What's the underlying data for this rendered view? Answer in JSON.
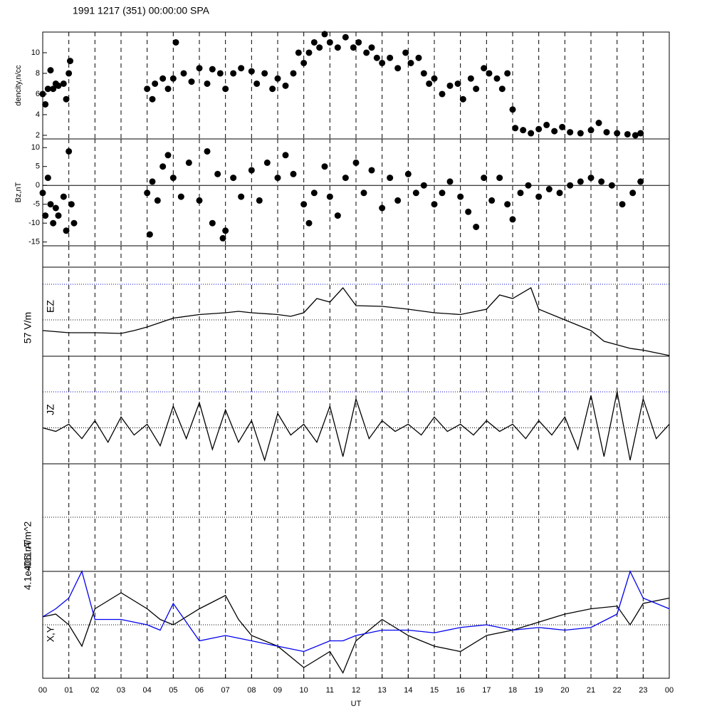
{
  "chart_data": [
    {
      "type": "scatter",
      "title": "1991 1217 (351) 00:00:00 SPA",
      "ylabel": "dencity,n/cc",
      "color": "#000000",
      "x": [
        0.0,
        0.1,
        0.2,
        0.3,
        0.4,
        0.5,
        0.6,
        0.8,
        0.9,
        1.0,
        1.05,
        4.0,
        4.2,
        4.3,
        4.6,
        4.8,
        5.0,
        5.1,
        5.4,
        5.7,
        6.0,
        6.3,
        6.5,
        6.8,
        7.0,
        7.3,
        7.6,
        8.0,
        8.2,
        8.5,
        8.8,
        9.0,
        9.3,
        9.6,
        9.8,
        10.0,
        10.2,
        10.4,
        10.6,
        10.8,
        11.0,
        11.3,
        11.6,
        11.9,
        12.1,
        12.4,
        12.6,
        12.8,
        13.0,
        13.3,
        13.6,
        13.9,
        14.1,
        14.4,
        14.6,
        14.8,
        15.0,
        15.3,
        15.6,
        15.9,
        16.1,
        16.4,
        16.6,
        16.9,
        17.1,
        17.4,
        17.6,
        17.8,
        18.0,
        18.1,
        18.4,
        18.7,
        19.0,
        19.3,
        19.6,
        19.9,
        20.2,
        20.6,
        21.0,
        21.3,
        21.6,
        22.0,
        22.4,
        22.7,
        22.9
      ],
      "values": [
        6,
        5,
        6.5,
        8.3,
        6.5,
        7,
        6.8,
        7,
        5.5,
        8,
        9.2,
        6.5,
        5.5,
        7,
        7.5,
        6.5,
        7.5,
        11,
        8,
        7.2,
        8.5,
        7,
        8.4,
        8,
        6.5,
        8,
        8.5,
        8.2,
        7,
        8,
        6.5,
        7.5,
        6.8,
        8,
        10,
        9,
        10,
        11,
        10.5,
        11.8,
        11,
        10.5,
        11.5,
        10.5,
        11,
        10,
        10.5,
        9.5,
        9,
        9.5,
        8.5,
        10,
        9,
        9.5,
        8,
        7,
        7.5,
        6,
        6.8,
        7,
        5.5,
        7.5,
        6.5,
        8.5,
        8,
        7.5,
        6.5,
        8,
        4.5,
        2.7,
        2.5,
        2.2,
        2.6,
        3,
        2.4,
        2.8,
        2.3,
        2.2,
        2.5,
        3.2,
        2.3,
        2.2,
        2.1,
        2,
        2.2
      ],
      "ylim": [
        1.65,
        12
      ],
      "yticks": [
        2,
        4,
        6,
        8,
        10
      ],
      "xlim": [
        0,
        24
      ]
    },
    {
      "type": "scatter",
      "ylabel": "Bz,nT",
      "color": "#000000",
      "zero_line": true,
      "x": [
        0,
        0.1,
        0.2,
        0.3,
        0.4,
        0.5,
        0.6,
        0.8,
        0.9,
        1.0,
        1.1,
        1.2,
        4.0,
        4.1,
        4.2,
        4.4,
        4.6,
        4.8,
        5.0,
        5.3,
        5.6,
        6.0,
        6.3,
        6.5,
        6.7,
        6.9,
        7.0,
        7.3,
        7.6,
        8.0,
        8.3,
        8.6,
        9.0,
        9.3,
        9.6,
        10.0,
        10.2,
        10.4,
        10.8,
        11.0,
        11.3,
        11.6,
        12.0,
        12.3,
        12.6,
        13.0,
        13.3,
        13.6,
        14.0,
        14.3,
        14.6,
        15.0,
        15.3,
        15.6,
        16.0,
        16.3,
        16.6,
        16.9,
        17.2,
        17.5,
        17.8,
        18.0,
        18.3,
        18.6,
        19.0,
        19.4,
        19.8,
        20.2,
        20.6,
        21.0,
        21.4,
        21.8,
        22.2,
        22.6,
        22.9
      ],
      "values": [
        -2,
        -8,
        2,
        -5,
        -10,
        -6,
        -8,
        -3,
        -12,
        9,
        -5,
        -10,
        -2,
        -13,
        1,
        -4,
        5,
        8,
        2,
        -3,
        6,
        -4,
        9,
        -10,
        3,
        -14,
        -12,
        2,
        -3,
        4,
        -4,
        6,
        2,
        8,
        3,
        -5,
        -10,
        -2,
        5,
        -3,
        -8,
        2,
        6,
        -2,
        4,
        -6,
        2,
        -4,
        3,
        -2,
        0,
        -5,
        -2,
        1,
        -3,
        -7,
        -11,
        2,
        -4,
        2,
        -5,
        -9,
        -2,
        0,
        -3,
        -1,
        -2,
        0,
        1,
        2,
        1,
        0,
        -5,
        -2,
        1
      ],
      "ylim": [
        -16,
        12.3
      ],
      "yticks": [
        -15,
        -10,
        -5,
        0,
        5,
        10
      ],
      "xlim": [
        0,
        24
      ]
    },
    {
      "type": "line",
      "ylabel": "EZ",
      "scale_label": "57 V/m",
      "color": "#000000",
      "x": [
        0,
        1,
        2,
        3,
        3.5,
        4,
        5,
        6,
        7,
        7.5,
        8,
        9,
        9.5,
        10,
        10.5,
        11,
        11.5,
        12,
        13,
        14,
        15,
        16,
        17,
        17.5,
        18,
        18.7,
        19,
        20,
        21,
        21.5,
        22,
        22.5,
        23,
        24
      ],
      "values": [
        -0.3,
        -0.36,
        -0.36,
        -0.38,
        -0.3,
        -0.2,
        0.05,
        0.15,
        0.2,
        0.24,
        0.2,
        0.15,
        0.1,
        0.2,
        0.6,
        0.5,
        0.9,
        0.4,
        0.38,
        0.3,
        0.2,
        0.15,
        0.3,
        0.7,
        0.6,
        0.9,
        0.3,
        0.0,
        -0.3,
        -0.6,
        -0.7,
        -0.8,
        -0.85,
        -1.0
      ],
      "ylim": [
        -1,
        1
      ],
      "xlim": [
        0,
        24
      ]
    },
    {
      "type": "line",
      "ylabel": "JZ",
      "scale_label": "4.1e-011 A/m^2",
      "color": "#000000",
      "x": [
        0,
        0.5,
        1,
        1.5,
        2,
        2.5,
        3,
        3.5,
        4,
        4.5,
        5,
        5.5,
        6,
        6.5,
        7,
        7.5,
        8,
        8.5,
        9,
        9.5,
        10,
        10.5,
        11,
        11.5,
        12,
        12.5,
        13,
        13.5,
        14,
        14.5,
        15,
        15.5,
        16,
        16.5,
        17,
        17.5,
        18,
        18.5,
        19,
        19.5,
        20,
        20.5,
        21,
        21.5,
        22,
        22.5,
        23,
        23.5,
        24
      ],
      "values": [
        0.0,
        -0.1,
        0.1,
        -0.3,
        0.2,
        -0.4,
        0.3,
        -0.2,
        0.1,
        -0.5,
        0.6,
        -0.3,
        0.7,
        -0.6,
        0.5,
        -0.4,
        0.2,
        -0.9,
        0.4,
        -0.2,
        0.1,
        -0.4,
        0.6,
        -0.8,
        0.8,
        -0.3,
        0.2,
        -0.1,
        0.1,
        -0.2,
        0.3,
        -0.1,
        0.1,
        -0.2,
        0.2,
        -0.1,
        0.1,
        -0.3,
        0.2,
        -0.2,
        0.3,
        -0.6,
        0.9,
        -0.8,
        1.0,
        -0.9,
        0.8,
        -0.3,
        0.1
      ],
      "ylim": [
        -1,
        1
      ],
      "xlim": [
        0,
        24
      ]
    },
    {
      "type": "line",
      "ylabel": "X,Y",
      "scale_label": "406 nT",
      "xlabel": "UT",
      "x": [
        0,
        0.5,
        1,
        1.5,
        2,
        3,
        4,
        4.5,
        5,
        6,
        7,
        7.5,
        8,
        9,
        10,
        11,
        11.5,
        12,
        13,
        14,
        15,
        16,
        17,
        18,
        19,
        20,
        21,
        22,
        22.5,
        23,
        24
      ],
      "series": [
        {
          "color": "#000000",
          "values": [
            0.15,
            0.2,
            0,
            -0.4,
            0.3,
            0.6,
            0.3,
            0.1,
            0.0,
            0.3,
            0.55,
            0.1,
            -0.2,
            -0.4,
            -0.8,
            -0.5,
            -0.9,
            -0.3,
            0.1,
            -0.2,
            -0.4,
            -0.5,
            -0.2,
            -0.1,
            0.05,
            0.2,
            0.3,
            0.35,
            0,
            0.4,
            0.5
          ]
        },
        {
          "color": "#0000ee",
          "values": [
            0.15,
            0.3,
            0.5,
            1.0,
            0.1,
            0.1,
            0.0,
            -0.1,
            0.4,
            -0.3,
            -0.2,
            -0.25,
            -0.3,
            -0.4,
            -0.5,
            -0.3,
            -0.3,
            -0.2,
            -0.1,
            -0.1,
            -0.15,
            -0.05,
            0.0,
            -0.1,
            -0.05,
            -0.1,
            -0.05,
            0.2,
            1.0,
            0.5,
            0.3
          ]
        }
      ],
      "ylim": [
        -1,
        1
      ],
      "xlim": [
        0,
        24
      ],
      "xticks": [
        {
          "value": 0,
          "label": "00"
        },
        {
          "value": 1,
          "label": "01"
        },
        {
          "value": 2,
          "label": "02"
        },
        {
          "value": 3,
          "label": "03"
        },
        {
          "value": 4,
          "label": "04"
        },
        {
          "value": 5,
          "label": "05"
        },
        {
          "value": 6,
          "label": "06"
        },
        {
          "value": 7,
          "label": "07"
        },
        {
          "value": 8,
          "label": "08"
        },
        {
          "value": 9,
          "label": "09"
        },
        {
          "value": 10,
          "label": "10"
        },
        {
          "value": 11,
          "label": "11"
        },
        {
          "value": 12,
          "label": "12"
        },
        {
          "value": 13,
          "label": "13"
        },
        {
          "value": 14,
          "label": "14"
        },
        {
          "value": 15,
          "label": "15"
        },
        {
          "value": 16,
          "label": "16"
        },
        {
          "value": 17,
          "label": "17"
        },
        {
          "value": 18,
          "label": "18"
        },
        {
          "value": 19,
          "label": "19"
        },
        {
          "value": 20,
          "label": "20"
        },
        {
          "value": 21,
          "label": "21"
        },
        {
          "value": 22,
          "label": "22"
        },
        {
          "value": 23,
          "label": "23"
        },
        {
          "value": 24,
          "label": "00"
        }
      ]
    }
  ]
}
